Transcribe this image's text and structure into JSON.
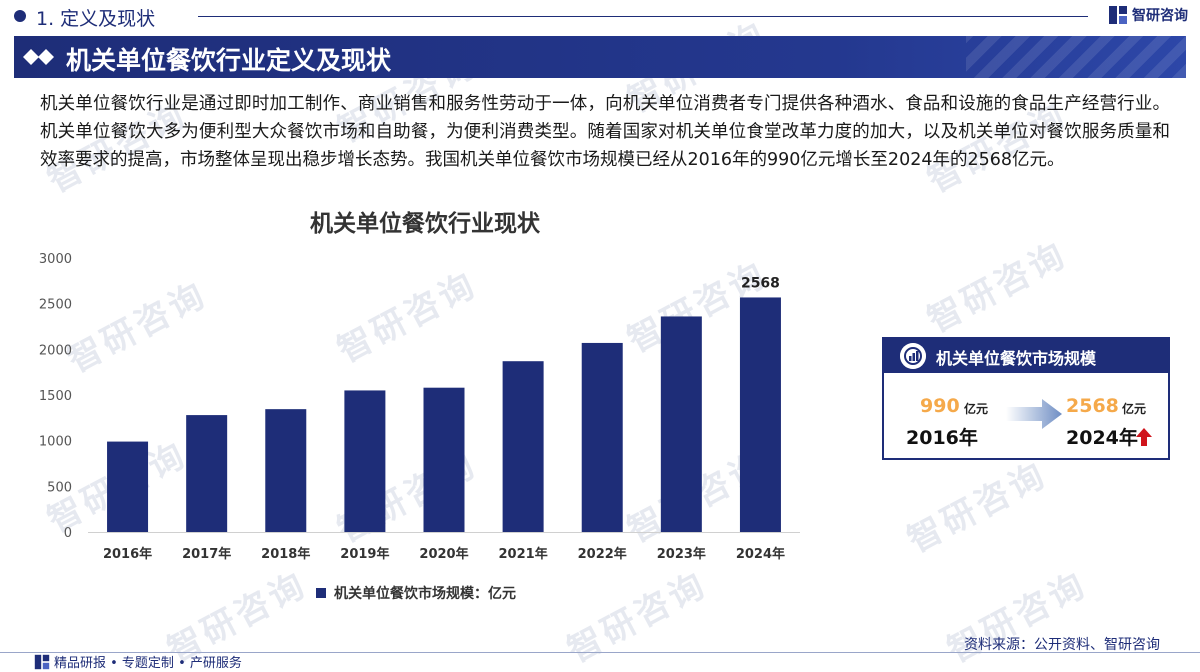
{
  "header": {
    "section": "1. 定义及现状",
    "brand": "智研咨询",
    "watermark": "智研咨询"
  },
  "banner": {
    "title": "机关单位餐饮行业定义及现状"
  },
  "body": {
    "paragraph": "机关单位餐饮行业是通过即时加工制作、商业销售和服务性劳动于一体，向机关单位消费者专门提供各种酒水、食品和设施的食品生产经营行业。机关单位餐饮大多为便利型大众餐饮市场和自助餐，为便利消费类型。随着国家对机关单位食堂改革力度的加大，以及机关单位对餐饮服务质量和效率要求的提高，市场整体呈现出稳步增长态势。我国机关单位餐饮市场规模已经从2016年的990亿元增长至2024年的2568亿元。"
  },
  "chart_data": {
    "type": "bar",
    "title": "机关单位餐饮行业现状",
    "categories": [
      "2016年",
      "2017年",
      "2018年",
      "2019年",
      "2020年",
      "2021年",
      "2022年",
      "2023年",
      "2024年"
    ],
    "series": [
      {
        "name": "机关单位餐饮市场规模：亿元",
        "values": [
          990,
          1280,
          1345,
          1550,
          1580,
          1870,
          2070,
          2360,
          2568
        ]
      }
    ],
    "data_labels": [
      null,
      null,
      null,
      null,
      null,
      null,
      null,
      null,
      "2568"
    ],
    "yticks": [
      "0",
      "500",
      "1000",
      "1500",
      "2000",
      "2500",
      "3000"
    ],
    "ylim": [
      0,
      3000
    ],
    "bar_color": "#1e2d78",
    "grid": false,
    "legend": "bottom"
  },
  "card": {
    "title": "机关单位餐饮市场规模",
    "start_value": "990",
    "start_unit": "亿元",
    "start_year": "2016年",
    "end_value": "2568",
    "end_unit": "亿元",
    "end_year": "2024年",
    "value_color": "#f5a94a",
    "trend_icon": "up-arrow-icon"
  },
  "source": "资料来源：公开资料、智研咨询",
  "footer": "精品研报 • 专题定制 • 产研服务",
  "colors": {
    "primary": "#1e2d78",
    "accent": "#f5a94a",
    "trend_up": "#d0141c"
  }
}
